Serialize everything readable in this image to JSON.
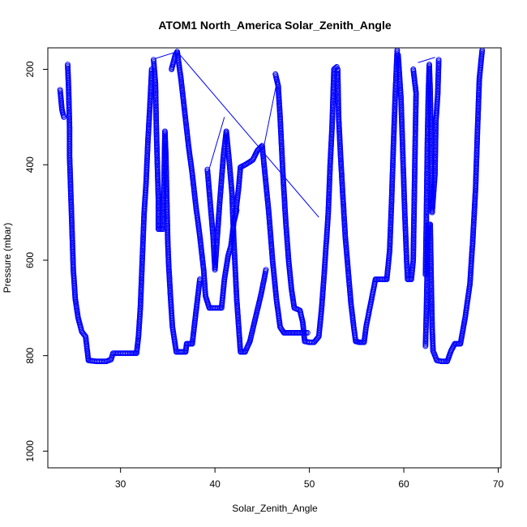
{
  "chart_data": {
    "type": "scatter",
    "title": "ATOM1 North_America Solar_Zenith_Angle",
    "xlabel": "Solar_Zenith_Angle",
    "ylabel": "Pressure (mbar)",
    "xlim": [
      22.3,
      70.3
    ],
    "ylim": [
      1035,
      155
    ],
    "y_reversed": true,
    "xticks": [
      30,
      40,
      50,
      60,
      70
    ],
    "yticks": [
      200,
      400,
      600,
      800,
      1000
    ],
    "series_color": "#0000ff",
    "marker": "open-circle",
    "grid": false,
    "legend": "none",
    "segments": [
      [
        [
          23.6,
          243
        ],
        [
          23.8,
          285
        ],
        [
          24.0,
          300
        ]
      ],
      [
        [
          24.4,
          190
        ],
        [
          24.5,
          240
        ],
        [
          24.6,
          320
        ],
        [
          24.6,
          380
        ],
        [
          24.8,
          500
        ],
        [
          25.0,
          620
        ],
        [
          25.2,
          680
        ],
        [
          25.5,
          720
        ],
        [
          25.9,
          750
        ],
        [
          26.3,
          760
        ],
        [
          26.6,
          810
        ],
        [
          27.5,
          812
        ],
        [
          28.5,
          812
        ],
        [
          29.0,
          808
        ],
        [
          29.2,
          795
        ],
        [
          30.0,
          795
        ],
        [
          31.0,
          795
        ],
        [
          31.7,
          795
        ],
        [
          31.9,
          760
        ],
        [
          32.1,
          700
        ],
        [
          32.3,
          600
        ],
        [
          32.5,
          500
        ],
        [
          32.7,
          440
        ],
        [
          32.9,
          350
        ],
        [
          33.1,
          280
        ],
        [
          33.3,
          200
        ]
      ],
      [
        [
          33.5,
          180
        ],
        [
          33.7,
          230
        ],
        [
          33.8,
          330
        ],
        [
          33.9,
          400
        ],
        [
          34.0,
          470
        ],
        [
          34.0,
          535
        ],
        [
          34.5,
          535
        ],
        [
          34.6,
          440
        ],
        [
          34.7,
          330
        ],
        [
          34.8,
          380
        ],
        [
          34.9,
          470
        ],
        [
          35.0,
          560
        ],
        [
          35.1,
          610
        ],
        [
          35.3,
          680
        ],
        [
          35.5,
          740
        ],
        [
          35.9,
          792
        ],
        [
          36.4,
          792
        ],
        [
          36.9,
          792
        ],
        [
          37.0,
          775
        ],
        [
          37.6,
          775
        ],
        [
          37.8,
          740
        ],
        [
          38.1,
          690
        ],
        [
          38.4,
          640
        ]
      ],
      [
        [
          35.4,
          200
        ],
        [
          35.8,
          170
        ],
        [
          36.0,
          163
        ],
        [
          36.4,
          220
        ],
        [
          36.8,
          290
        ],
        [
          37.2,
          360
        ],
        [
          37.6,
          420
        ],
        [
          38.0,
          490
        ],
        [
          38.4,
          550
        ],
        [
          38.8,
          620
        ],
        [
          39.0,
          675
        ],
        [
          39.4,
          700
        ],
        [
          40.3,
          700
        ],
        [
          40.7,
          700
        ],
        [
          41.0,
          640
        ],
        [
          41.4,
          590
        ],
        [
          41.7,
          570
        ],
        [
          42.0,
          520
        ],
        [
          42.3,
          495
        ]
      ],
      [
        [
          39.2,
          410
        ],
        [
          39.5,
          480
        ],
        [
          39.8,
          550
        ],
        [
          40.0,
          620
        ],
        [
          40.5,
          480
        ],
        [
          40.9,
          380
        ],
        [
          41.2,
          330
        ],
        [
          41.5,
          390
        ],
        [
          41.8,
          460
        ],
        [
          42.0,
          560
        ],
        [
          42.3,
          680
        ],
        [
          42.7,
          792
        ],
        [
          43.2,
          792
        ],
        [
          43.7,
          770
        ],
        [
          44.3,
          720
        ],
        [
          44.9,
          670
        ],
        [
          45.4,
          620
        ]
      ],
      [
        [
          42.2,
          500
        ],
        [
          42.5,
          450
        ],
        [
          42.7,
          405
        ],
        [
          43.2,
          400
        ],
        [
          44.0,
          390
        ],
        [
          44.5,
          370
        ],
        [
          45.0,
          360
        ],
        [
          45.2,
          400
        ],
        [
          45.7,
          500
        ],
        [
          46.1,
          600
        ],
        [
          46.5,
          680
        ],
        [
          46.9,
          740
        ],
        [
          47.3,
          752
        ],
        [
          48.0,
          752
        ],
        [
          48.7,
          752
        ],
        [
          49.3,
          752
        ],
        [
          49.8,
          752
        ]
      ],
      [
        [
          46.4,
          210
        ],
        [
          46.7,
          235
        ],
        [
          46.9,
          300
        ],
        [
          47.2,
          420
        ],
        [
          47.5,
          520
        ],
        [
          47.8,
          600
        ],
        [
          48.1,
          660
        ],
        [
          48.4,
          700
        ],
        [
          49.0,
          705
        ],
        [
          49.3,
          730
        ],
        [
          49.5,
          770
        ],
        [
          50.0,
          772
        ],
        [
          50.5,
          772
        ],
        [
          51.0,
          760
        ],
        [
          51.3,
          700
        ],
        [
          51.6,
          620
        ],
        [
          51.8,
          560
        ],
        [
          52.0,
          500
        ],
        [
          52.2,
          400
        ],
        [
          52.4,
          320
        ],
        [
          52.6,
          200
        ],
        [
          52.9,
          195
        ]
      ],
      [
        [
          53.0,
          200
        ],
        [
          53.1,
          300
        ],
        [
          53.3,
          380
        ],
        [
          53.5,
          450
        ],
        [
          53.8,
          550
        ],
        [
          54.1,
          620
        ],
        [
          54.4,
          690
        ],
        [
          54.7,
          740
        ],
        [
          54.9,
          770
        ],
        [
          55.3,
          772
        ],
        [
          55.8,
          772
        ],
        [
          56.0,
          740
        ],
        [
          56.4,
          700
        ],
        [
          56.8,
          660
        ],
        [
          57.0,
          640
        ],
        [
          57.6,
          640
        ],
        [
          58.2,
          640
        ],
        [
          58.5,
          580
        ],
        [
          58.7,
          480
        ],
        [
          58.9,
          360
        ],
        [
          59.1,
          250
        ],
        [
          59.3,
          160
        ]
      ],
      [
        [
          59.4,
          170
        ],
        [
          59.7,
          260
        ],
        [
          59.9,
          380
        ],
        [
          60.1,
          500
        ],
        [
          60.3,
          600
        ],
        [
          60.4,
          640
        ],
        [
          60.8,
          640
        ],
        [
          61.0,
          600
        ],
        [
          61.1,
          480
        ],
        [
          61.2,
          360
        ],
        [
          61.3,
          250
        ],
        [
          61.0,
          200
        ]
      ],
      [
        [
          62.3,
          780
        ],
        [
          62.4,
          700
        ],
        [
          62.5,
          600
        ],
        [
          62.6,
          525
        ],
        [
          62.8,
          525
        ],
        [
          62.9,
          640
        ],
        [
          63.0,
          740
        ],
        [
          63.1,
          790
        ],
        [
          63.3,
          800
        ],
        [
          63.5,
          810
        ],
        [
          64.0,
          812
        ],
        [
          64.6,
          812
        ],
        [
          65.0,
          790
        ],
        [
          65.4,
          775
        ],
        [
          66.0,
          775
        ],
        [
          66.5,
          720
        ],
        [
          67.0,
          650
        ],
        [
          67.3,
          560
        ],
        [
          67.6,
          450
        ],
        [
          67.8,
          330
        ],
        [
          68.0,
          220
        ],
        [
          68.3,
          160
        ]
      ],
      [
        [
          62.3,
          630
        ],
        [
          62.4,
          500
        ],
        [
          62.5,
          350
        ],
        [
          62.6,
          250
        ],
        [
          62.7,
          190
        ],
        [
          62.8,
          250
        ],
        [
          62.9,
          380
        ],
        [
          63.0,
          500
        ],
        [
          63.3,
          420
        ],
        [
          63.4,
          310
        ],
        [
          63.6,
          250
        ],
        [
          63.7,
          180
        ]
      ]
    ],
    "connectors": [
      [
        [
          33.6,
          178
        ],
        [
          36.0,
          163
        ],
        [
          51.0,
          510
        ]
      ],
      [
        [
          39.3,
          415
        ],
        [
          41.0,
          300
        ]
      ],
      [
        [
          43.2,
          398
        ],
        [
          45.2,
          360
        ],
        [
          46.7,
          212
        ]
      ],
      [
        [
          61.5,
          186
        ],
        [
          63.3,
          175
        ]
      ]
    ]
  }
}
